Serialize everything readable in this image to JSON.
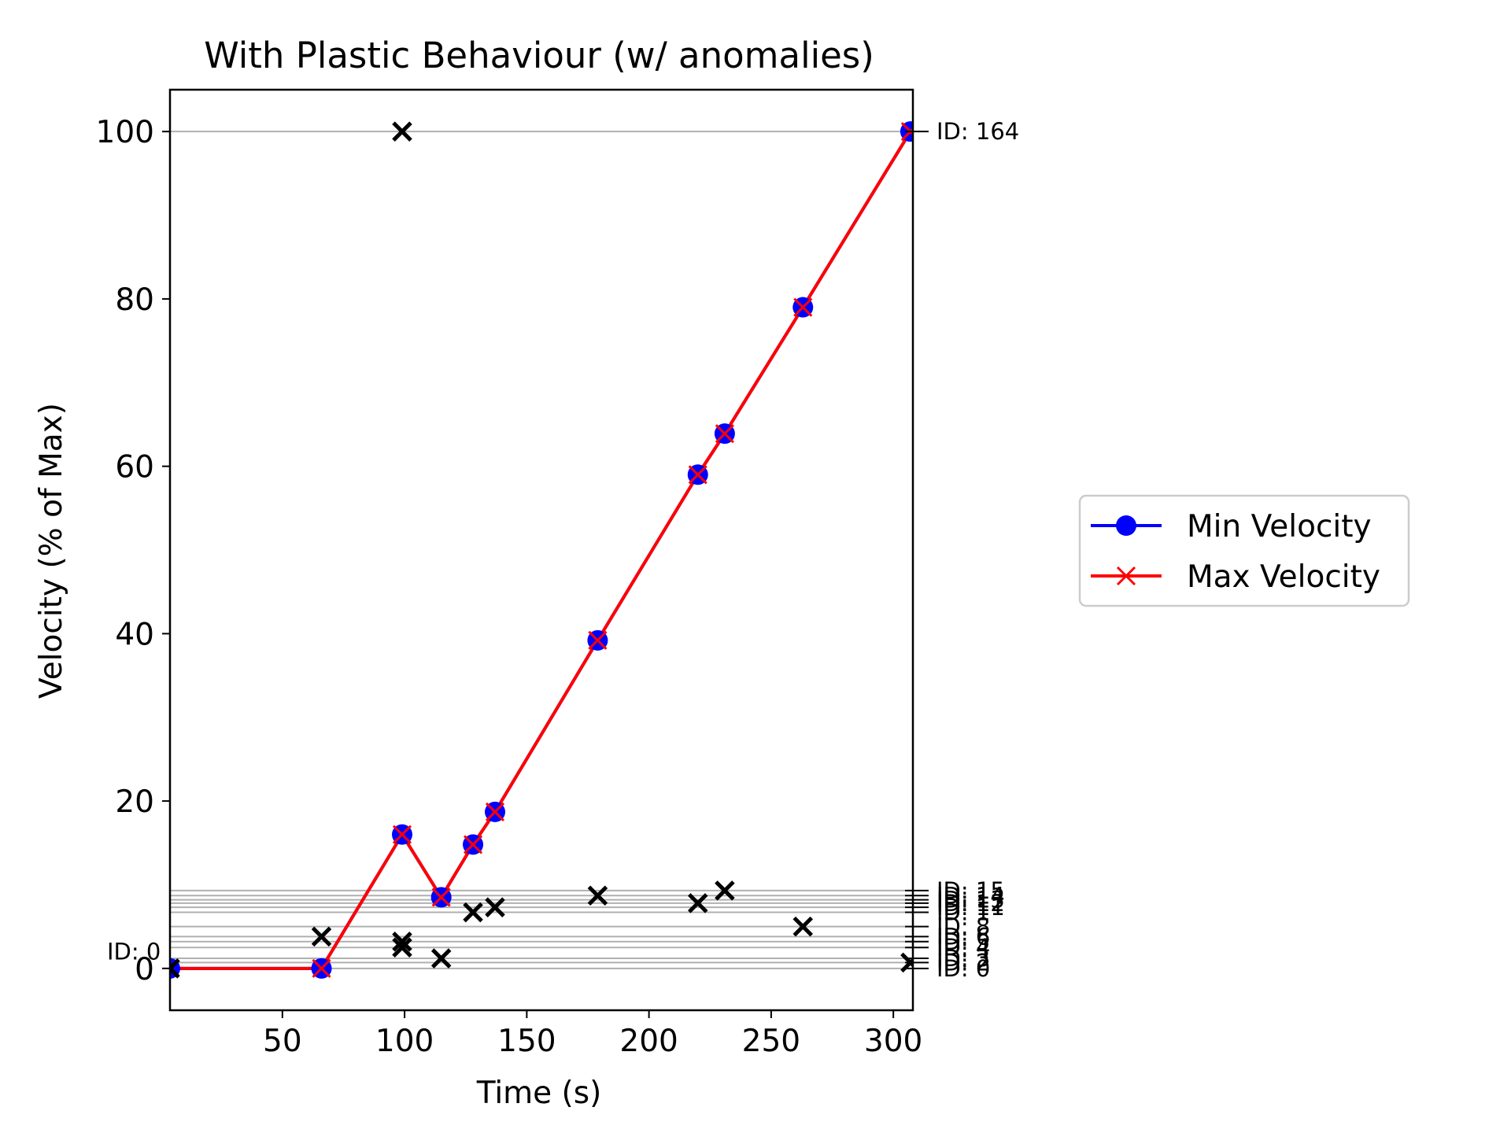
{
  "chart_data": {
    "type": "line",
    "title": "With Plastic Behaviour (w/ anomalies)",
    "xlabel": "Time (s)",
    "ylabel": "Velocity (% of Max)",
    "xlim": [
      4,
      308
    ],
    "ylim": [
      -5,
      105
    ],
    "xticks": [
      50,
      100,
      150,
      200,
      250,
      300
    ],
    "yticks": [
      0,
      20,
      40,
      60,
      80,
      100
    ],
    "grid": "horizontal lines at reference levels",
    "legend_position": "right, outside plot",
    "series": [
      {
        "name": "Min Velocity",
        "color": "#0000ff",
        "marker": "circle",
        "x": [
          4,
          66,
          99,
          115,
          128,
          137,
          179,
          220,
          231,
          263,
          307
        ],
        "y": [
          0,
          0,
          16,
          8.5,
          14.8,
          18.7,
          39.2,
          59,
          63.9,
          79,
          100
        ]
      },
      {
        "name": "Max Velocity",
        "color": "#ff0000",
        "marker": "x",
        "x": [
          4,
          66,
          99,
          115,
          128,
          137,
          179,
          220,
          231,
          263,
          307
        ],
        "y": [
          0,
          0,
          16,
          8.5,
          14.8,
          18.7,
          39.2,
          59,
          63.9,
          79,
          100
        ]
      }
    ],
    "anomalies": {
      "color": "#000000",
      "marker": "x",
      "points": [
        {
          "x": 4,
          "y": 0
        },
        {
          "x": 66,
          "y": 3.8
        },
        {
          "x": 99,
          "y": 100
        },
        {
          "x": 99,
          "y": 3.2
        },
        {
          "x": 99,
          "y": 2.5
        },
        {
          "x": 115,
          "y": 1.2
        },
        {
          "x": 128,
          "y": 6.7
        },
        {
          "x": 137,
          "y": 7.3
        },
        {
          "x": 179,
          "y": 8.7
        },
        {
          "x": 220,
          "y": 7.8
        },
        {
          "x": 231,
          "y": 9.3
        },
        {
          "x": 263,
          "y": 5.0
        },
        {
          "x": 307,
          "y": 0.7
        }
      ]
    },
    "reference_lines": {
      "color": "#b0b0b0",
      "y": [
        100,
        9.3,
        8.7,
        8.2,
        7.8,
        7.3,
        6.7,
        5.0,
        3.8,
        3.2,
        2.5,
        1.2,
        0.7,
        0
      ]
    },
    "annotations": [
      {
        "text": "ID: 164",
        "y": 100,
        "side": "right"
      },
      {
        "text": "ID: 0",
        "y": 2.0,
        "side": "left"
      },
      {
        "text": "ID: 15",
        "y": 9.3,
        "side": "right"
      },
      {
        "text": "ID: 14",
        "y": 8.7,
        "side": "right"
      },
      {
        "text": "ID: 13",
        "y": 8.2,
        "side": "right"
      },
      {
        "text": "ID: 12",
        "y": 7.8,
        "side": "right"
      },
      {
        "text": "ID: 11",
        "y": 7.3,
        "side": "right"
      },
      {
        "text": "ID: 1",
        "y": 6.7,
        "side": "right"
      },
      {
        "text": "ID: 8",
        "y": 5.0,
        "side": "right"
      },
      {
        "text": "ID: 6",
        "y": 3.8,
        "side": "right"
      },
      {
        "text": "ID: 5",
        "y": 3.2,
        "side": "right"
      },
      {
        "text": "ID: 4",
        "y": 2.5,
        "side": "right"
      },
      {
        "text": "ID: 3",
        "y": 1.2,
        "side": "right"
      },
      {
        "text": "ID: 2",
        "y": 0.7,
        "side": "right"
      },
      {
        "text": "ID: 0",
        "y": 0,
        "side": "right"
      }
    ]
  }
}
